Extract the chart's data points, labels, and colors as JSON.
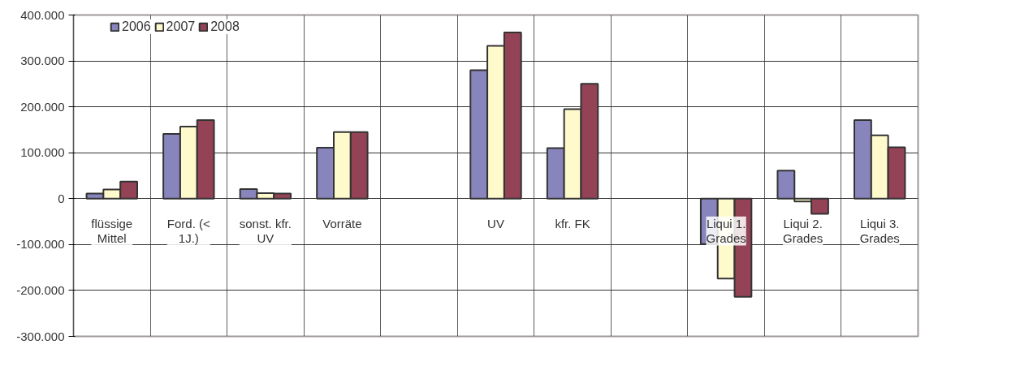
{
  "chart_data": {
    "type": "bar",
    "categories": [
      "flüssige Mittel",
      "Ford. (< 1J.)",
      "sonst. kfr. UV",
      "Vorräte",
      null,
      "UV",
      "kfr. FK",
      null,
      "Liqui 1. Grades",
      "Liqui 2. Grades",
      "Liqui 3. Grades"
    ],
    "series": [
      {
        "name": "2006",
        "color": "#8884bc",
        "values": [
          11000,
          141000,
          21000,
          111000,
          null,
          280000,
          110000,
          null,
          -99000,
          61000,
          171000
        ]
      },
      {
        "name": "2007",
        "color": "#fffacc",
        "values": [
          20000,
          157000,
          12000,
          145000,
          null,
          333000,
          195000,
          null,
          -174000,
          -6000,
          138000
        ]
      },
      {
        "name": "2008",
        "color": "#944256",
        "values": [
          37000,
          171000,
          11000,
          145000,
          null,
          362000,
          250000,
          null,
          -214000,
          -33000,
          112000
        ]
      }
    ],
    "ylim": [
      -300000,
      400000
    ],
    "yticks": [
      {
        "value": -300000,
        "label": "-300.000"
      },
      {
        "value": -200000,
        "label": "-200.000"
      },
      {
        "value": -100000,
        "label": "-100.000"
      },
      {
        "value": 0,
        "label": "0"
      },
      {
        "value": 100000,
        "label": "100.000"
      },
      {
        "value": 200000,
        "label": "200.000"
      },
      {
        "value": 300000,
        "label": "300.000"
      },
      {
        "value": 400000,
        "label": "400.000"
      }
    ],
    "grid": true,
    "legend": "top left"
  }
}
